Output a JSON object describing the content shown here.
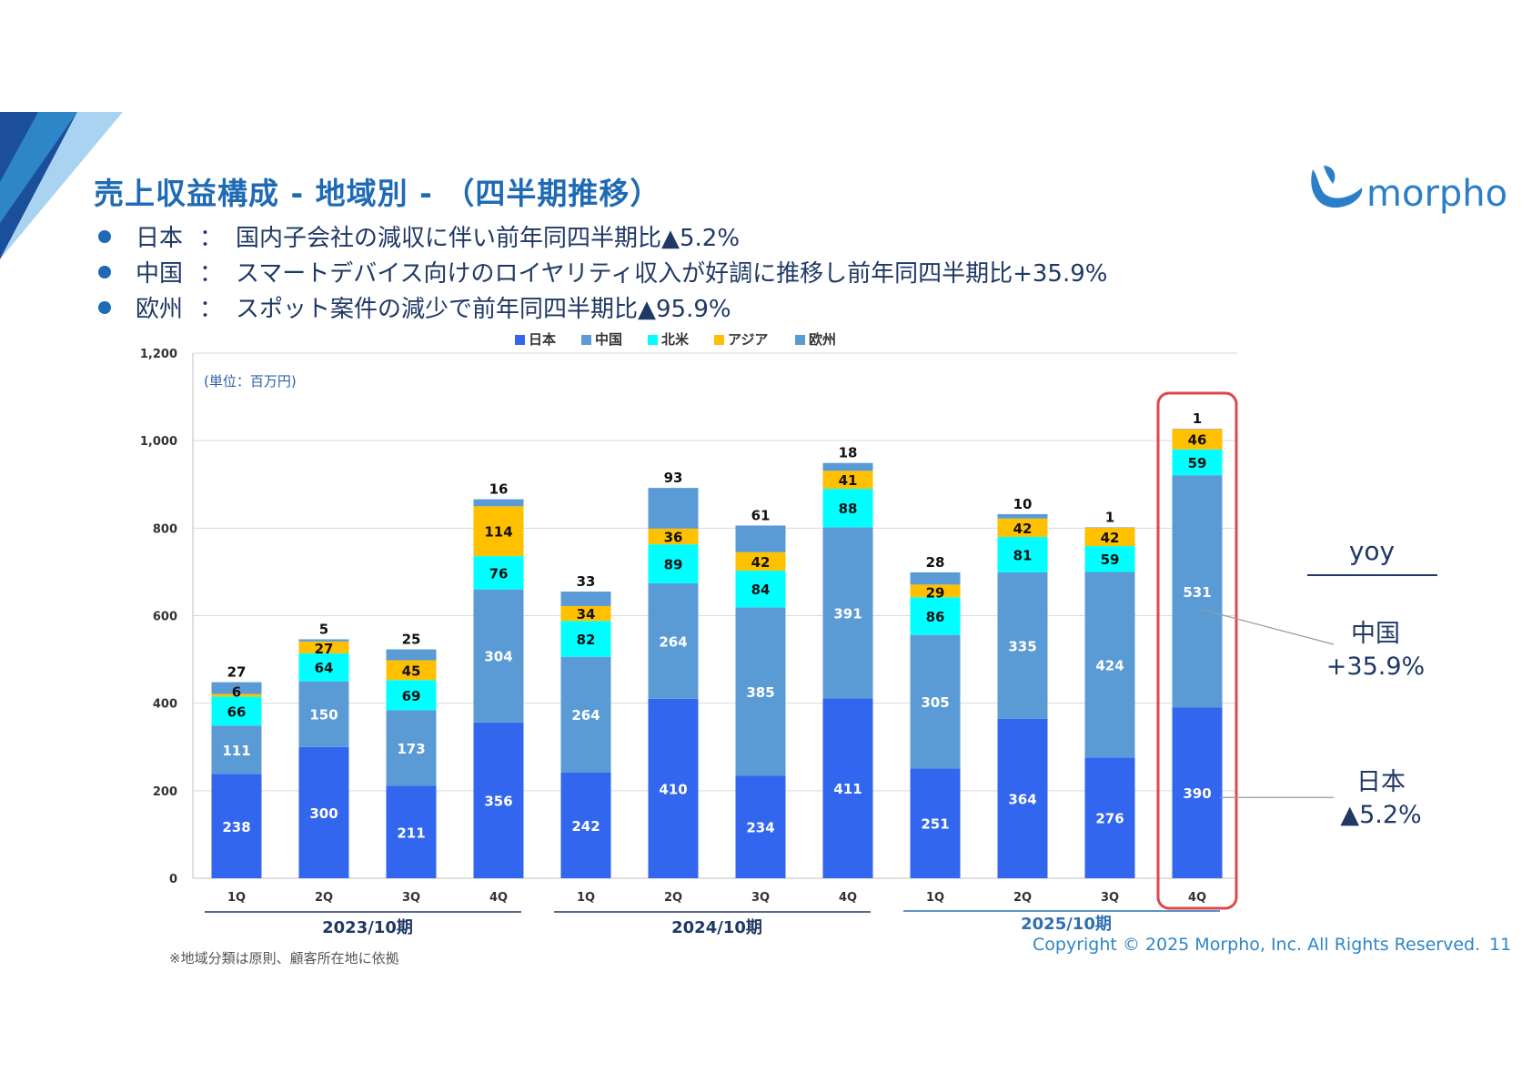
{
  "title": "売上収益構成 - 地域別 - （四半期推移）",
  "logo_text": "morpho",
  "bullets": [
    {
      "region": "日本",
      "colon": "：",
      "text": "国内子会社の減収に伴い前年同四半期比▲5.2%"
    },
    {
      "region": "中国",
      "colon": "：",
      "text": "スマートデバイス向けのロイヤリティ収入が好調に推移し前年同四半期比+35.9%"
    },
    {
      "region": "欧州",
      "colon": "：",
      "text": "スポット案件の減少で前年同四半期比▲95.9%"
    }
  ],
  "chart_data": {
    "type": "bar",
    "stacked": true,
    "unit_note": "(単位：百万円)",
    "ylim": [
      0,
      1200
    ],
    "yticks": [
      "0",
      "200",
      "400",
      "600",
      "800",
      "1,000",
      "1,200"
    ],
    "grid": true,
    "legend_position": "top",
    "categories": [
      "1Q",
      "2Q",
      "3Q",
      "4Q",
      "1Q",
      "2Q",
      "3Q",
      "4Q",
      "1Q",
      "2Q",
      "3Q",
      "4Q"
    ],
    "groups": [
      {
        "label": "2023/10期",
        "color": "#1f3864"
      },
      {
        "label": "2024/10期",
        "color": "#1f3864"
      },
      {
        "label": "2025/10期",
        "color": "#2f6fb5"
      }
    ],
    "series": [
      {
        "name": "日本",
        "color": "#3366ee",
        "values": [
          238,
          300,
          211,
          356,
          242,
          410,
          234,
          411,
          251,
          364,
          276,
          390
        ]
      },
      {
        "name": "中国",
        "color": "#5b9bd5",
        "values": [
          111,
          150,
          173,
          304,
          264,
          264,
          385,
          391,
          305,
          335,
          424,
          531
        ]
      },
      {
        "name": "北米",
        "color": "#00ffff",
        "values": [
          66,
          64,
          69,
          76,
          82,
          89,
          84,
          88,
          86,
          81,
          59,
          59
        ]
      },
      {
        "name": "アジア",
        "color": "#ffc000",
        "values": [
          6,
          27,
          45,
          114,
          34,
          36,
          42,
          41,
          29,
          42,
          42,
          46
        ]
      },
      {
        "name": "欧州",
        "color": "#5b9bd5",
        "values": [
          27,
          5,
          25,
          16,
          33,
          93,
          61,
          18,
          28,
          10,
          1,
          1
        ]
      }
    ],
    "highlight_index": 11,
    "yoy": {
      "label": "yoy",
      "china": {
        "region": "中国",
        "change": "+35.9%"
      },
      "japan": {
        "region": "日本",
        "change": "▲5.2%"
      }
    }
  },
  "footnote": "※地域分類は原則、顧客所在地に依拠",
  "copyright": "Copyright © 2025 Morpho, Inc. All Rights Reserved.",
  "page_number": "11"
}
